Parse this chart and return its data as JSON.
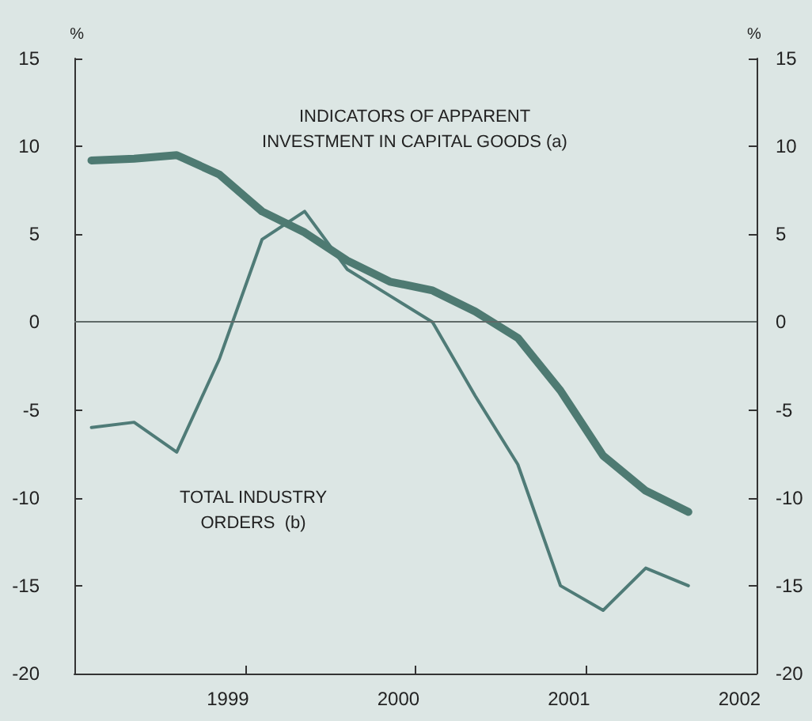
{
  "chart_data": {
    "type": "line",
    "ylabel": "%",
    "y2label": "%",
    "xlim": [
      1998.1,
      2002.1
    ],
    "xticks": [
      1999,
      2000,
      2001,
      2002,
      {
        "value": 1999.1,
        "label": null
      },
      {
        "value": 2000.1,
        "label": null
      },
      {
        "value": 2001.1,
        "label": null
      }
    ],
    "ylim": [
      -20,
      15
    ],
    "yticks": [
      -20,
      -15,
      -10,
      -5,
      0,
      5,
      10,
      15
    ],
    "y2lim": [
      -20,
      15
    ],
    "y2ticks": [
      -20,
      -15,
      -10,
      -5,
      0,
      5,
      10,
      15
    ],
    "x": [
      1998.2,
      1998.45,
      1998.7,
      1998.95,
      1999.2,
      1999.45,
      1999.7,
      1999.95,
      2000.2,
      2000.45,
      2000.7,
      2000.95,
      2001.2,
      2001.45,
      2001.7
    ],
    "series": [
      {
        "name": "INDICATORS OF APPARENT\nINVESTMENT IN CAPITAL GOODS (a)",
        "color": "#4e7a72",
        "values": [
          9.2,
          9.3,
          9.5,
          8.4,
          6.3,
          5.1,
          3.5,
          2.3,
          1.8,
          0.6,
          -0.9,
          -3.9,
          -7.6,
          -9.6,
          -10.8
        ]
      },
      {
        "name": "TOTAL INDUSTRY\nORDERS  (b)",
        "color": "#4f7b77",
        "values": [
          -6.0,
          -5.7,
          -7.4,
          -2.1,
          4.7,
          6.3,
          3.0,
          1.5,
          0.0,
          -4.2,
          -8.1,
          -15.0,
          -16.4,
          -14.0,
          -15.0
        ]
      }
    ],
    "ref_lines": [
      {
        "axis": "y",
        "value": 0,
        "color": "#606a68"
      }
    ],
    "grid": false,
    "legend": false,
    "marker": "none",
    "line_style": "solid"
  }
}
